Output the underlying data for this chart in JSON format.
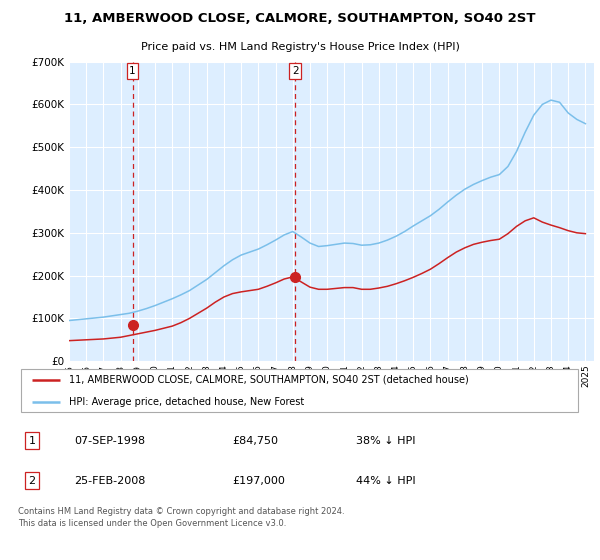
{
  "title": "11, AMBERWOOD CLOSE, CALMORE, SOUTHAMPTON, SO40 2ST",
  "subtitle": "Price paid vs. HM Land Registry's House Price Index (HPI)",
  "legend_line1": "11, AMBERWOOD CLOSE, CALMORE, SOUTHAMPTON, SO40 2ST (detached house)",
  "legend_line2": "HPI: Average price, detached house, New Forest",
  "footnote": "Contains HM Land Registry data © Crown copyright and database right 2024.\nThis data is licensed under the Open Government Licence v3.0.",
  "table_rows": [
    {
      "num": "1",
      "date": "07-SEP-1998",
      "price": "£84,750",
      "hpi": "38% ↓ HPI"
    },
    {
      "num": "2",
      "date": "25-FEB-2008",
      "price": "£197,000",
      "hpi": "44% ↓ HPI"
    }
  ],
  "sale1_year": 1998.69,
  "sale1_price": 84750,
  "sale2_year": 2008.15,
  "sale2_price": 197000,
  "hpi_color": "#7bbfea",
  "price_color": "#cc2222",
  "vline_color": "#cc2222",
  "background_color": "#ddeeff",
  "hpi_years": [
    1995.0,
    1995.5,
    1996.0,
    1996.5,
    1997.0,
    1997.5,
    1998.0,
    1998.5,
    1999.0,
    1999.5,
    2000.0,
    2000.5,
    2001.0,
    2001.5,
    2002.0,
    2002.5,
    2003.0,
    2003.5,
    2004.0,
    2004.5,
    2005.0,
    2005.5,
    2006.0,
    2006.5,
    2007.0,
    2007.5,
    2008.0,
    2008.5,
    2009.0,
    2009.5,
    2010.0,
    2010.5,
    2011.0,
    2011.5,
    2012.0,
    2012.5,
    2013.0,
    2013.5,
    2014.0,
    2014.5,
    2015.0,
    2015.5,
    2016.0,
    2016.5,
    2017.0,
    2017.5,
    2018.0,
    2018.5,
    2019.0,
    2019.5,
    2020.0,
    2020.5,
    2021.0,
    2021.5,
    2022.0,
    2022.5,
    2023.0,
    2023.5,
    2024.0,
    2024.5,
    2025.0
  ],
  "hpi_values": [
    95000,
    97000,
    99000,
    101000,
    103000,
    106000,
    109000,
    112000,
    117000,
    123000,
    130000,
    138000,
    146000,
    155000,
    165000,
    178000,
    191000,
    207000,
    223000,
    237000,
    248000,
    255000,
    262000,
    272000,
    283000,
    295000,
    303000,
    290000,
    276000,
    268000,
    270000,
    273000,
    276000,
    275000,
    271000,
    272000,
    276000,
    283000,
    292000,
    303000,
    316000,
    328000,
    340000,
    355000,
    372000,
    388000,
    402000,
    413000,
    422000,
    430000,
    436000,
    455000,
    490000,
    535000,
    575000,
    600000,
    610000,
    605000,
    580000,
    565000,
    555000
  ],
  "price_years": [
    1995.0,
    1995.5,
    1996.0,
    1996.5,
    1997.0,
    1997.5,
    1998.0,
    1998.5,
    1999.0,
    1999.5,
    2000.0,
    2000.5,
    2001.0,
    2001.5,
    2002.0,
    2002.5,
    2003.0,
    2003.5,
    2004.0,
    2004.5,
    2005.0,
    2005.5,
    2006.0,
    2006.5,
    2007.0,
    2007.5,
    2008.0,
    2008.5,
    2009.0,
    2009.5,
    2010.0,
    2010.5,
    2011.0,
    2011.5,
    2012.0,
    2012.5,
    2013.0,
    2013.5,
    2014.0,
    2014.5,
    2015.0,
    2015.5,
    2016.0,
    2016.5,
    2017.0,
    2017.5,
    2018.0,
    2018.5,
    2019.0,
    2019.5,
    2020.0,
    2020.5,
    2021.0,
    2021.5,
    2022.0,
    2022.5,
    2023.0,
    2023.5,
    2024.0,
    2024.5,
    2025.0
  ],
  "price_values": [
    48000,
    49000,
    50000,
    51000,
    52000,
    54000,
    56000,
    60000,
    64000,
    68000,
    72000,
    77000,
    82000,
    90000,
    100000,
    112000,
    124000,
    138000,
    150000,
    158000,
    162000,
    165000,
    168000,
    175000,
    183000,
    192000,
    197000,
    185000,
    173000,
    168000,
    168000,
    170000,
    172000,
    172000,
    168000,
    168000,
    171000,
    175000,
    181000,
    188000,
    196000,
    205000,
    215000,
    228000,
    242000,
    255000,
    265000,
    273000,
    278000,
    282000,
    285000,
    298000,
    315000,
    328000,
    335000,
    325000,
    318000,
    312000,
    305000,
    300000,
    298000
  ],
  "ylim": [
    0,
    700000
  ],
  "yticks": [
    0,
    100000,
    200000,
    300000,
    400000,
    500000,
    600000,
    700000
  ],
  "xlim_start": 1995.0,
  "xlim_end": 2025.5
}
